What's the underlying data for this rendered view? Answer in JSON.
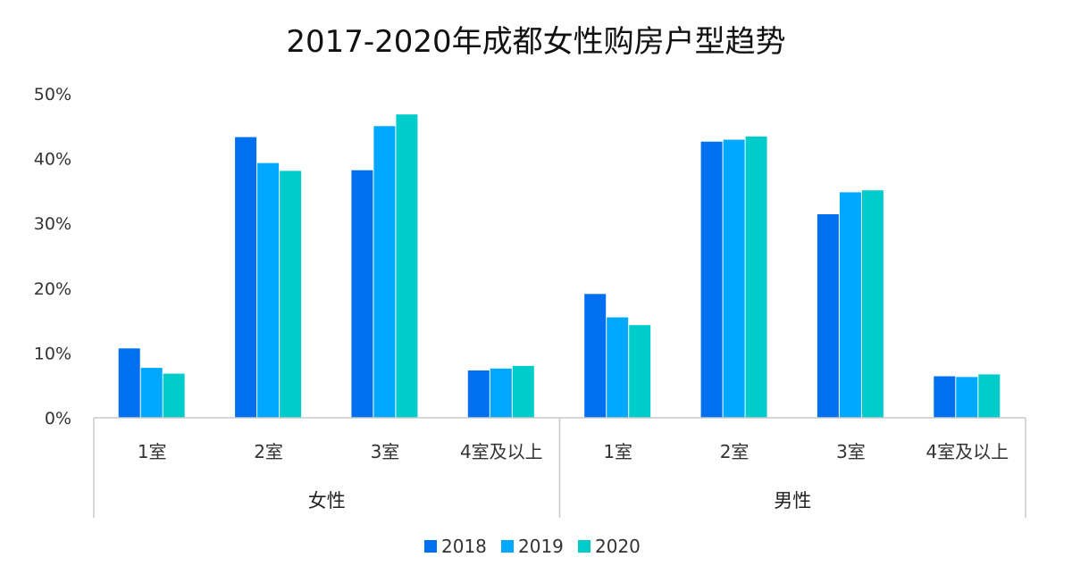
{
  "chart_data": {
    "type": "bar",
    "title": "2017-2020年成都女性购房户型趋势",
    "xlabel": "",
    "ylabel": "",
    "ylim": [
      0,
      50
    ],
    "y_ticks": [
      "0%",
      "10%",
      "20%",
      "30%",
      "40%",
      "50%"
    ],
    "y_tick_values": [
      0,
      10,
      20,
      30,
      40,
      50
    ],
    "groups": [
      {
        "name": "女性",
        "categories": [
          "1室",
          "2室",
          "3室",
          "4室及以上"
        ]
      },
      {
        "name": "男性",
        "categories": [
          "1室",
          "2室",
          "3室",
          "4室及以上"
        ]
      }
    ],
    "series": [
      {
        "name": "2018",
        "color": "#0070f0",
        "values": [
          10.7,
          43.3,
          38.2,
          7.3,
          19.1,
          42.6,
          31.4,
          6.4
        ]
      },
      {
        "name": "2019",
        "color": "#00a8ff",
        "values": [
          7.7,
          39.3,
          45.0,
          7.6,
          15.5,
          42.9,
          34.8,
          6.3
        ]
      },
      {
        "name": "2020",
        "color": "#00cccc",
        "values": [
          6.8,
          38.1,
          46.8,
          8.0,
          14.3,
          43.4,
          35.1,
          6.7
        ]
      }
    ],
    "legend_position": "bottom"
  }
}
